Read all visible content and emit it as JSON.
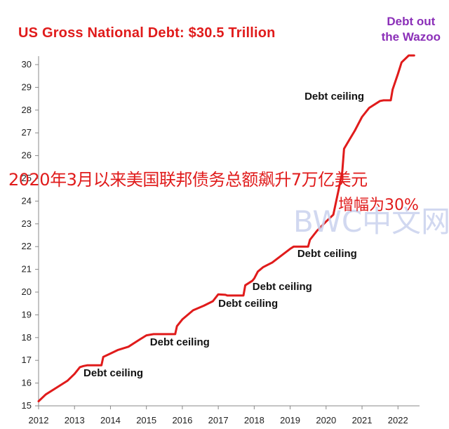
{
  "header": {
    "title": "US Gross  National  Debt: $30.5 Trillion",
    "corner_line1": "Debt out",
    "corner_line2": "the Wazoo"
  },
  "overlay": {
    "line1": "2020年3月以来美国联邦债务总额飙升7万亿美元",
    "line2": "增幅为30%",
    "watermark": "BWC中文网"
  },
  "colors": {
    "line": "#e01b1b",
    "title": "#e01b1b",
    "corner": "#8b2fb8",
    "watermark": "#c9d2ee"
  },
  "chart_data": {
    "type": "line",
    "title": "US Gross  National  Debt: $30.5 Trillion",
    "xlabel": "",
    "ylabel": "",
    "xlim": [
      2012,
      2022.6
    ],
    "ylim": [
      15,
      30.5
    ],
    "x_ticks": [
      2012,
      2013,
      2014,
      2015,
      2016,
      2017,
      2018,
      2019,
      2020,
      2021,
      2022
    ],
    "y_ticks": [
      15,
      16,
      17,
      18,
      19,
      20,
      21,
      22,
      23,
      24,
      25,
      26,
      27,
      28,
      29,
      30
    ],
    "grid": false,
    "legend": "none",
    "series": [
      {
        "values_unit": "trillion USD",
        "points": [
          [
            2012.0,
            15.2
          ],
          [
            2012.2,
            15.5
          ],
          [
            2012.5,
            15.8
          ],
          [
            2012.8,
            16.1
          ],
          [
            2013.0,
            16.4
          ],
          [
            2013.15,
            16.7
          ],
          [
            2013.25,
            16.75
          ],
          [
            2013.35,
            16.78
          ],
          [
            2013.75,
            16.78
          ],
          [
            2013.8,
            17.15
          ],
          [
            2014.0,
            17.3
          ],
          [
            2014.2,
            17.45
          ],
          [
            2014.5,
            17.6
          ],
          [
            2014.8,
            17.9
          ],
          [
            2015.0,
            18.1
          ],
          [
            2015.2,
            18.15
          ],
          [
            2015.35,
            18.15
          ],
          [
            2015.8,
            18.15
          ],
          [
            2015.85,
            18.5
          ],
          [
            2016.0,
            18.8
          ],
          [
            2016.3,
            19.2
          ],
          [
            2016.6,
            19.4
          ],
          [
            2016.85,
            19.6
          ],
          [
            2017.0,
            19.9
          ],
          [
            2017.2,
            19.88
          ],
          [
            2017.25,
            19.85
          ],
          [
            2017.7,
            19.85
          ],
          [
            2017.75,
            20.3
          ],
          [
            2017.95,
            20.5
          ],
          [
            2018.0,
            20.6
          ],
          [
            2018.1,
            20.9
          ],
          [
            2018.25,
            21.1
          ],
          [
            2018.5,
            21.3
          ],
          [
            2018.75,
            21.6
          ],
          [
            2019.0,
            21.9
          ],
          [
            2019.1,
            22.0
          ],
          [
            2019.2,
            22.0
          ],
          [
            2019.5,
            22.0
          ],
          [
            2019.55,
            22.3
          ],
          [
            2019.75,
            22.7
          ],
          [
            2020.0,
            23.1
          ],
          [
            2020.2,
            23.4
          ],
          [
            2020.35,
            24.5
          ],
          [
            2020.45,
            25.3
          ],
          [
            2020.5,
            26.3
          ],
          [
            2020.65,
            26.7
          ],
          [
            2020.8,
            27.1
          ],
          [
            2021.0,
            27.7
          ],
          [
            2021.2,
            28.1
          ],
          [
            2021.5,
            28.4
          ],
          [
            2021.6,
            28.43
          ],
          [
            2021.8,
            28.43
          ],
          [
            2021.85,
            28.9
          ],
          [
            2022.0,
            29.6
          ],
          [
            2022.1,
            30.1
          ],
          [
            2022.3,
            30.4
          ],
          [
            2022.45,
            30.4
          ]
        ]
      }
    ],
    "annotations": [
      {
        "text": "Debt ceiling",
        "x": 2013.25,
        "y": 16.3
      },
      {
        "text": "Debt ceiling",
        "x": 2015.1,
        "y": 17.65
      },
      {
        "text": "Debt ceiling",
        "x": 2017.0,
        "y": 19.35
      },
      {
        "text": "Debt ceiling",
        "x": 2017.95,
        "y": 20.1
      },
      {
        "text": "Debt ceiling",
        "x": 2019.2,
        "y": 21.55
      },
      {
        "text": "Debt ceiling",
        "x": 2019.4,
        "y": 28.45
      }
    ]
  }
}
